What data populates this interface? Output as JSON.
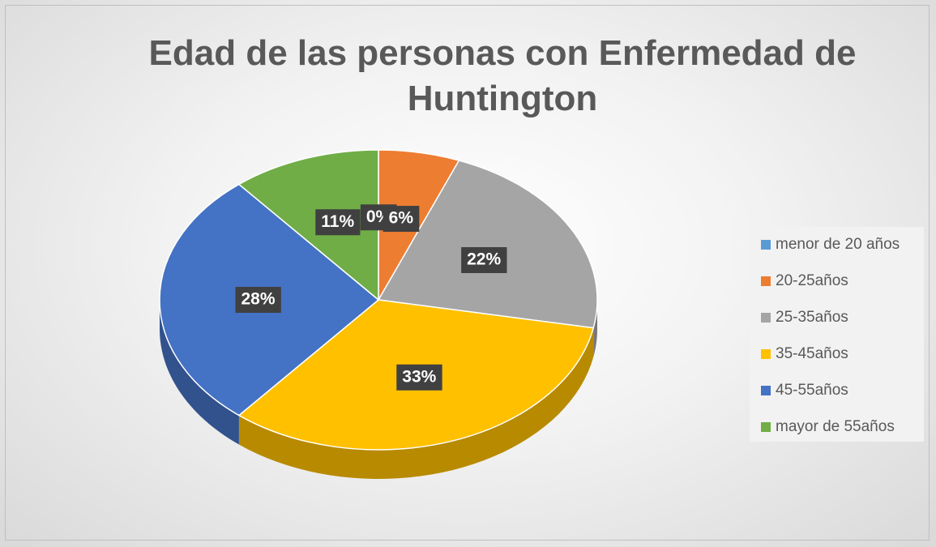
{
  "chart_data": {
    "type": "pie",
    "title": "Edad de las personas con Enfermedad de Huntington",
    "categories": [
      "menor de 20 años",
      "20-25años",
      "25-35años",
      "35-45años",
      "45-55años",
      "mayor de 55años"
    ],
    "values": [
      0,
      6,
      22,
      33,
      28,
      11
    ],
    "value_labels": [
      "0%",
      "6%",
      "22%",
      "33%",
      "28%",
      "11%"
    ],
    "colors": [
      "#5b9bd5",
      "#ed7d31",
      "#a5a5a5",
      "#ffc000",
      "#4472c4",
      "#70ad47"
    ],
    "legend": "right"
  }
}
